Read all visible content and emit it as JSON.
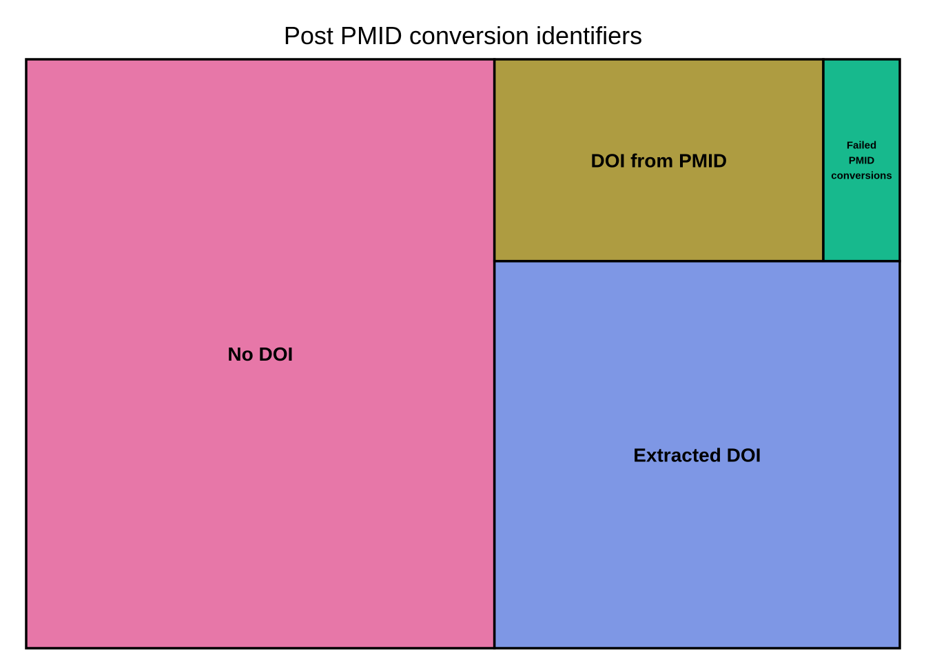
{
  "chart_data": {
    "type": "treemap",
    "title": "Post PMID conversion identifiers",
    "tiles": [
      {
        "label": "No DOI",
        "value": 0.536,
        "color": "#E777A8"
      },
      {
        "label": "Extracted DOI",
        "value": 0.305,
        "color": "#7E97E5"
      },
      {
        "label": "DOI from PMID",
        "value": 0.129,
        "color": "#AE9C41"
      },
      {
        "label": "Failed PMID conversions",
        "label_lines": [
          "Failed",
          "PMID",
          "conversions"
        ],
        "value": 0.03,
        "color": "#17B98D"
      }
    ]
  }
}
